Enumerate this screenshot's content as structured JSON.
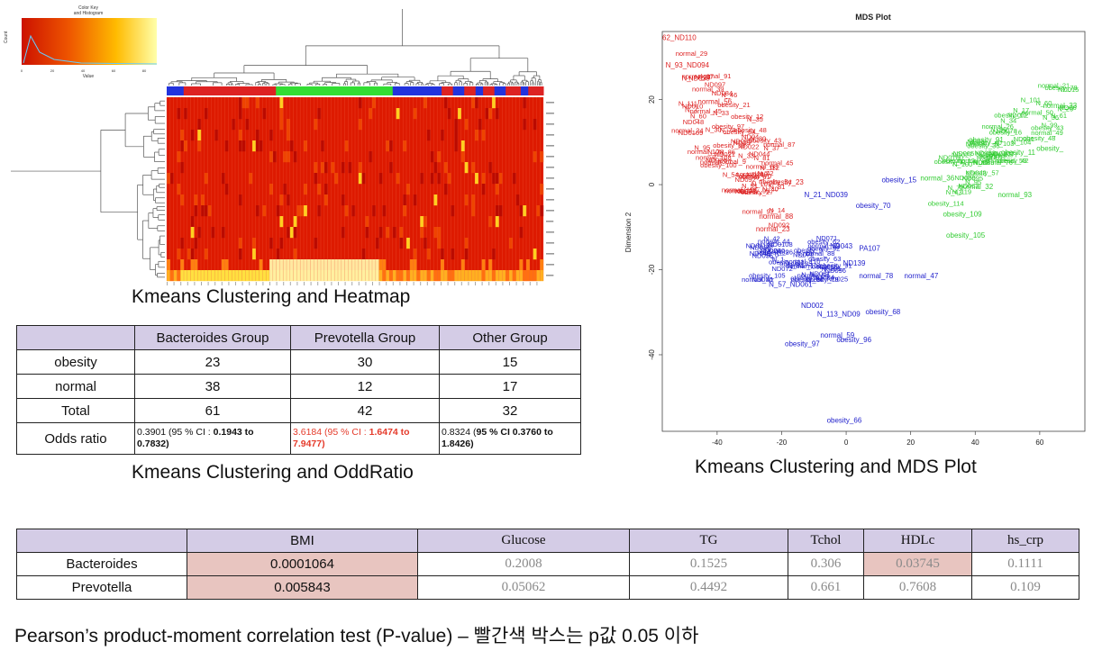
{
  "heatmap": {
    "color_key_title": "Color Key",
    "color_key_subtitle": "and Histogram",
    "color_key_ylabel": "Count",
    "color_key_xlabel": "Value",
    "color_key_ticks": [
      "0",
      "20",
      "40",
      "60",
      "80"
    ],
    "group_bar_colors": [
      "#2233dd",
      "#dd2222",
      "#33dd33",
      "#2233dd",
      "#dd2222"
    ],
    "caption": "Kmeans Clustering and Heatmap"
  },
  "odds_table": {
    "caption": "Kmeans Clustering and OddRatio",
    "headers": [
      "",
      "Bacteroides Group",
      "Prevotella Group",
      "Other Group"
    ],
    "rows": [
      {
        "label": "obesity",
        "values": [
          "23",
          "30",
          "15"
        ]
      },
      {
        "label": "normal",
        "values": [
          "38",
          "12",
          "17"
        ]
      },
      {
        "label": "Total",
        "values": [
          "61",
          "42",
          "32"
        ]
      }
    ],
    "odds_label": "Odds ratio",
    "odds": [
      {
        "prefix": "0.3901 (95 % CI : ",
        "bold": "0.1943 to 0.7832)",
        "highlight": false
      },
      {
        "prefix": "3.6184 (95 % CI : ",
        "bold": "1.6474 to 7.9477)",
        "highlight": true
      },
      {
        "prefix": "0.8324 (",
        "bold": "95 % CI 0.3760 to 1.8426)",
        "highlight": false
      }
    ]
  },
  "mds": {
    "caption": "Kmeans Clustering and MDS Plot"
  },
  "corr_table": {
    "headers": [
      "",
      "BMI",
      "Glucose",
      "TG",
      "Tchol",
      "HDLc",
      "hs_crp"
    ],
    "rows": [
      {
        "label": "Bacteroides",
        "values": [
          "0.0001064",
          "0.2008",
          "0.1525",
          "0.306",
          "0.03745",
          "0.1111"
        ],
        "significant": [
          true,
          false,
          false,
          false,
          true,
          false
        ]
      },
      {
        "label": "Prevotella",
        "values": [
          "0.005843",
          "0.05062",
          "0.4492",
          "0.661",
          "0.7608",
          "0.109"
        ],
        "significant": [
          true,
          false,
          false,
          false,
          false,
          false
        ]
      }
    ],
    "caption": "Pearson’s product-moment correlation test (P-value) – 빨간색 박스는 p값 0.05 이하"
  },
  "chart_data": {
    "type": "scatter",
    "title": "MDS Plot",
    "xlabel": "",
    "ylabel": "Dimension 2",
    "xlim": [
      -57,
      74
    ],
    "ylim": [
      -58,
      36
    ],
    "x_ticks": [
      -40,
      -20,
      0,
      20,
      40,
      60
    ],
    "y_ticks": [
      20,
      0,
      -20,
      -40
    ],
    "series": [
      {
        "color": "#dd2222",
        "points": [
          {
            "label": "62_ND110",
            "x": -57,
            "y": 34
          },
          {
            "label": "N_93_ND094",
            "x": -56,
            "y": 27.5
          },
          {
            "label": "N_",
            "x": -51,
            "y": 24.5
          },
          {
            "label": "normal_56",
            "x": -46,
            "y": 19
          },
          {
            "label": "N_7",
            "x": -50,
            "y": 17
          },
          {
            "label": "normal_88",
            "x": -27,
            "y": -8
          },
          {
            "label": "normal_23",
            "x": -28,
            "y": -11
          },
          {
            "label": "obesity_23",
            "x": -24,
            "y": 0
          }
        ]
      },
      {
        "color": "#2222cc",
        "points": [
          {
            "label": "obesity_15",
            "x": 11,
            "y": 0.5
          },
          {
            "label": "N_21_ND039",
            "x": -13,
            "y": -3
          },
          {
            "label": "obesity_70",
            "x": 3,
            "y": -5.5
          },
          {
            "label": "ND043",
            "x": -5,
            "y": -15
          },
          {
            "label": "PA107",
            "x": 4,
            "y": -15.5
          },
          {
            "label": "ND139",
            "x": -1,
            "y": -19
          },
          {
            "label": "normal_78",
            "x": 4,
            "y": -22
          },
          {
            "label": "normal_47",
            "x": 18,
            "y": -22
          },
          {
            "label": "N_57_ND061",
            "x": -24,
            "y": -24
          },
          {
            "label": "ND002",
            "x": -14,
            "y": -29
          },
          {
            "label": "N_113_ND09",
            "x": -9,
            "y": -31
          },
          {
            "label": "obesity_68",
            "x": 6,
            "y": -30.5
          },
          {
            "label": "normal_59",
            "x": -8,
            "y": -36
          },
          {
            "label": "obesity_96",
            "x": -3,
            "y": -37
          },
          {
            "label": "obesity_97",
            "x": -19,
            "y": -38
          },
          {
            "label": "obesity_66",
            "x": -6,
            "y": -56
          }
        ]
      },
      {
        "color": "#33cc33",
        "points": [
          {
            "label": "obesity_91",
            "x": 38,
            "y": 10
          },
          {
            "label": "obesity_11",
            "x": 48,
            "y": 7
          },
          {
            "label": "obesity_",
            "x": 59,
            "y": 8
          },
          {
            "label": "normal_36",
            "x": 23,
            "y": 1
          },
          {
            "label": "normal_32",
            "x": 35,
            "y": -1
          },
          {
            "label": "normal_93",
            "x": 47,
            "y": -3
          },
          {
            "label": "obesity_109",
            "x": 30,
            "y": -7.5
          },
          {
            "label": "obesity_105",
            "x": 31,
            "y": -12.5
          },
          {
            "label": "normal_33",
            "x": 61,
            "y": 18
          }
        ]
      }
    ]
  }
}
